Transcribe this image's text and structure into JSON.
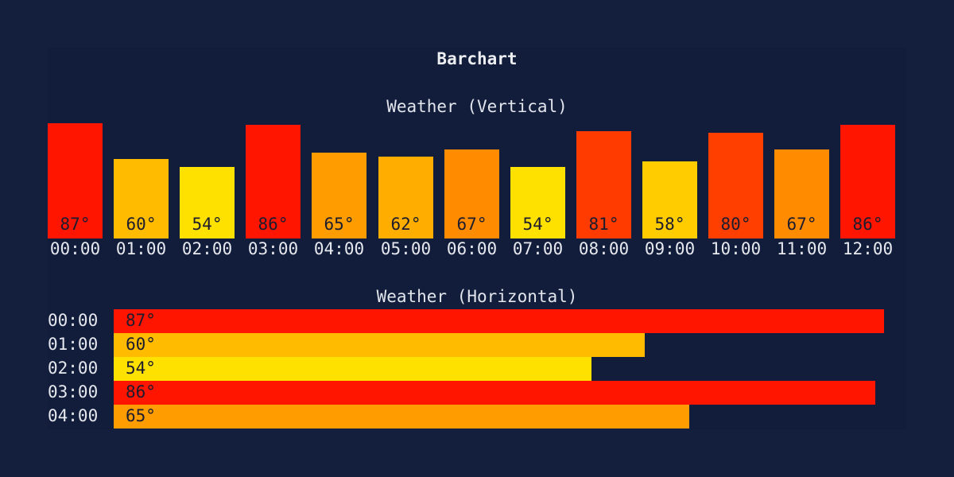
{
  "title": "Barchart",
  "chart_data": [
    {
      "type": "bar",
      "orientation": "vertical",
      "title": "Weather (Vertical)",
      "categories": [
        "00:00",
        "01:00",
        "02:00",
        "03:00",
        "04:00",
        "05:00",
        "06:00",
        "07:00",
        "08:00",
        "09:00",
        "10:00",
        "11:00",
        "12:00"
      ],
      "values": [
        87,
        60,
        54,
        86,
        65,
        62,
        67,
        54,
        81,
        58,
        80,
        67,
        86
      ],
      "value_labels": [
        "87°",
        "60°",
        "54°",
        "86°",
        "65°",
        "62°",
        "67°",
        "54°",
        "81°",
        "58°",
        "80°",
        "67°",
        "86°"
      ],
      "colors": [
        "#ff1500",
        "#ffbb00",
        "#ffe100",
        "#ff1500",
        "#ff9d00",
        "#ffae00",
        "#ff8c00",
        "#ffe100",
        "#ff3b00",
        "#ffcc00",
        "#ff3f00",
        "#ff8c00",
        "#ff1500"
      ],
      "xlabel": "",
      "ylabel": "",
      "grid": false
    },
    {
      "type": "bar",
      "orientation": "horizontal",
      "title": "Weather (Horizontal)",
      "categories": [
        "00:00",
        "01:00",
        "02:00",
        "03:00",
        "04:00"
      ],
      "values": [
        87,
        60,
        54,
        86,
        65
      ],
      "value_labels": [
        "87°",
        "60°",
        "54°",
        "86°",
        "65°"
      ],
      "colors": [
        "#ff1500",
        "#ffbb00",
        "#ffe100",
        "#ff1500",
        "#ff9d00"
      ],
      "xlabel": "",
      "ylabel": "",
      "grid": false
    }
  ]
}
